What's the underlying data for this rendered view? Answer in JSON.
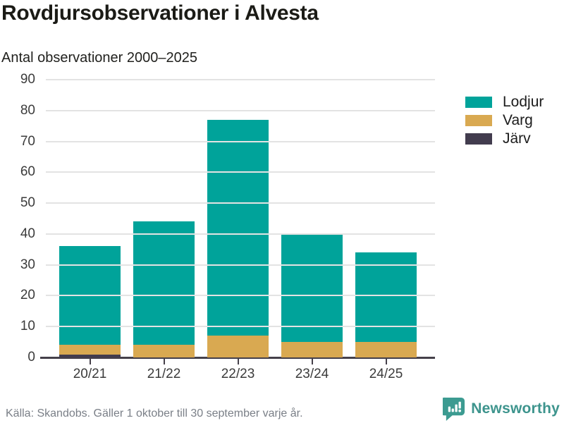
{
  "header": {
    "title": "Rovdjursobservationer i Alvesta",
    "subtitle": "Antal observationer 2000–2025"
  },
  "chart_data": {
    "type": "bar",
    "stacked": true,
    "title": "Rovdjursobservationer i Alvesta",
    "subtitle": "Antal observationer 2000–2025",
    "categories": [
      "20/21",
      "21/22",
      "22/23",
      "23/24",
      "24/25"
    ],
    "series": [
      {
        "name": "Lodjur",
        "color": "#00a39a",
        "values": [
          32,
          40,
          70,
          35,
          29
        ]
      },
      {
        "name": "Varg",
        "color": "#d9a951",
        "values": [
          3,
          4,
          7,
          5,
          5
        ]
      },
      {
        "name": "Järv",
        "color": "#423c4e",
        "values": [
          1,
          0,
          0,
          0,
          0
        ]
      }
    ],
    "totals": [
      36,
      44,
      77,
      40,
      34
    ],
    "xlabel": "",
    "ylabel": "",
    "ylim": [
      0,
      90
    ],
    "yticks": [
      0,
      10,
      20,
      30,
      40,
      50,
      60,
      70,
      80,
      90
    ],
    "grid": true,
    "legend_position": "right"
  },
  "footer": {
    "source": "Källa: Skandobs. Gäller 1 oktober till 30 september varje år.",
    "brand": "Newsworthy",
    "brand_color": "#3d948d",
    "brand_icon": "newsworthy-speech-bubble-chart-icon"
  }
}
